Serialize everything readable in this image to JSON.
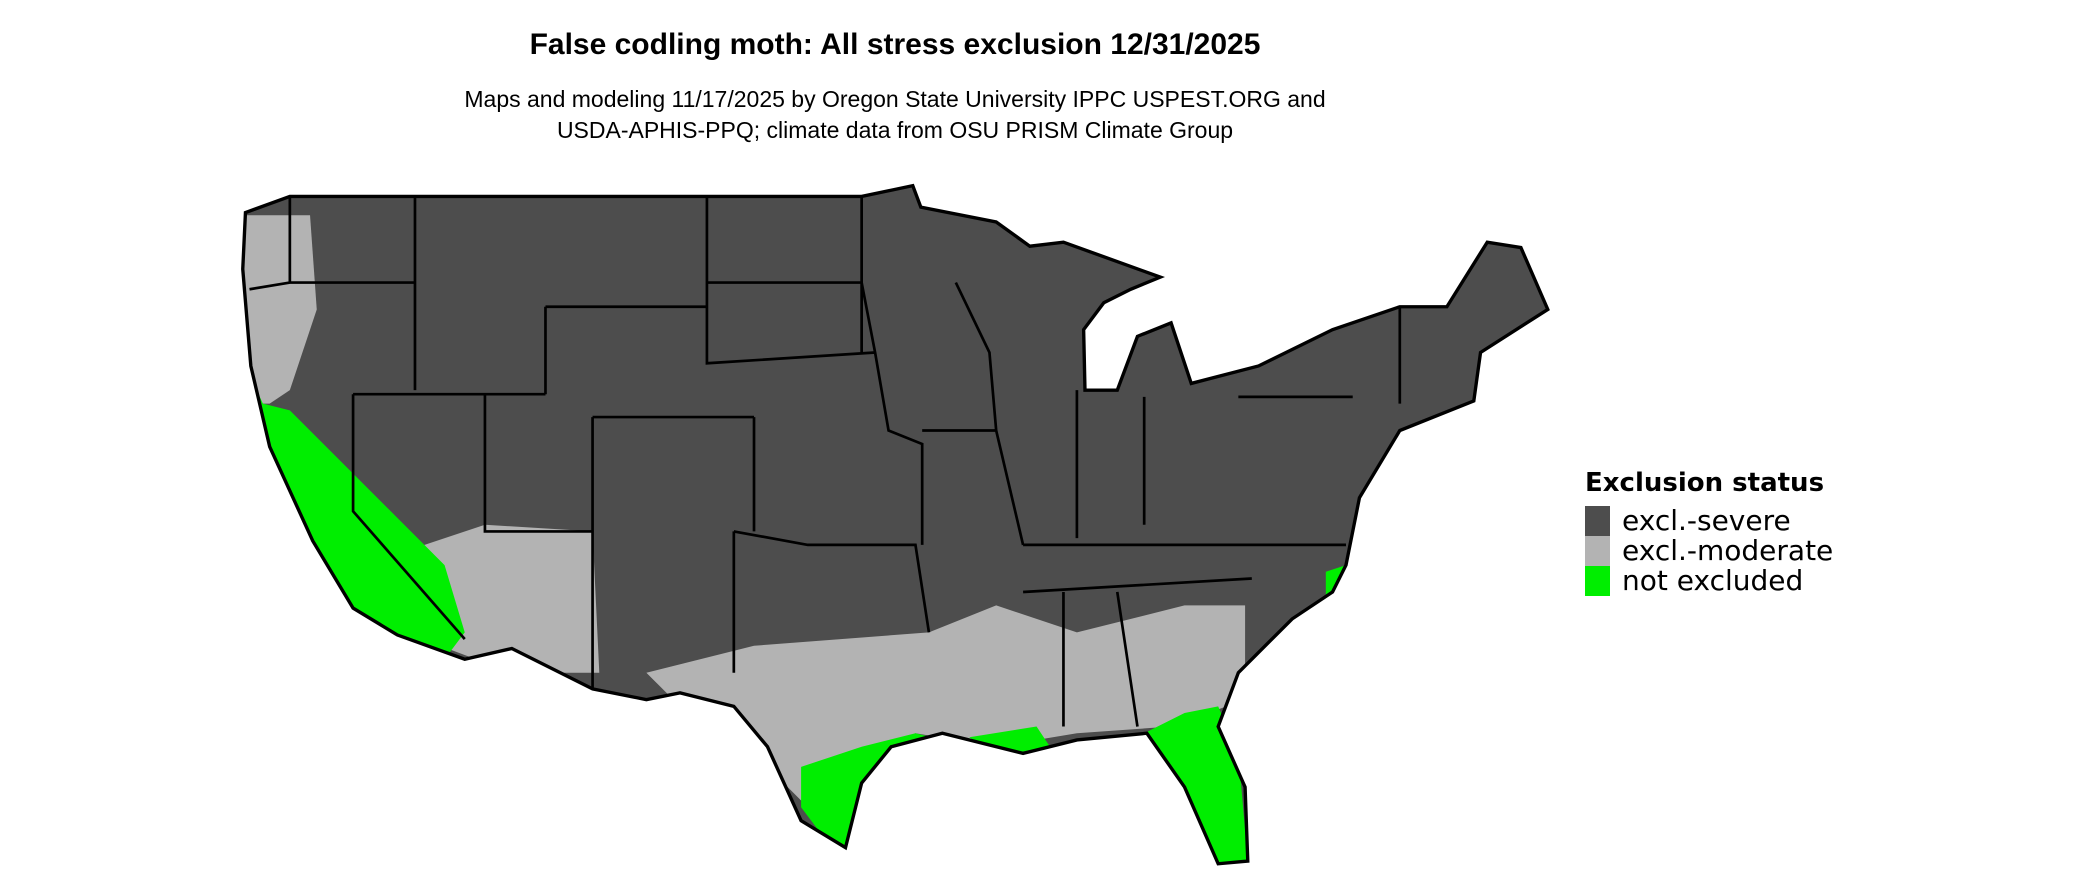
{
  "title": "False codling moth: All stress exclusion 12/31/2025",
  "subtitle_lines": [
    "Maps and modeling 11/17/2025 by Oregon State University IPPC USPEST.ORG and",
    "USDA-APHIS-PPQ; climate data from OSU PRISM Climate Group"
  ],
  "legend": {
    "title": "Exclusion status",
    "items": [
      {
        "label": "excl.-severe",
        "color": "#4d4d4d"
      },
      {
        "label": "excl.-moderate",
        "color": "#b3b3b3"
      },
      {
        "label": "not excluded",
        "color": "#00ee00"
      }
    ]
  }
}
